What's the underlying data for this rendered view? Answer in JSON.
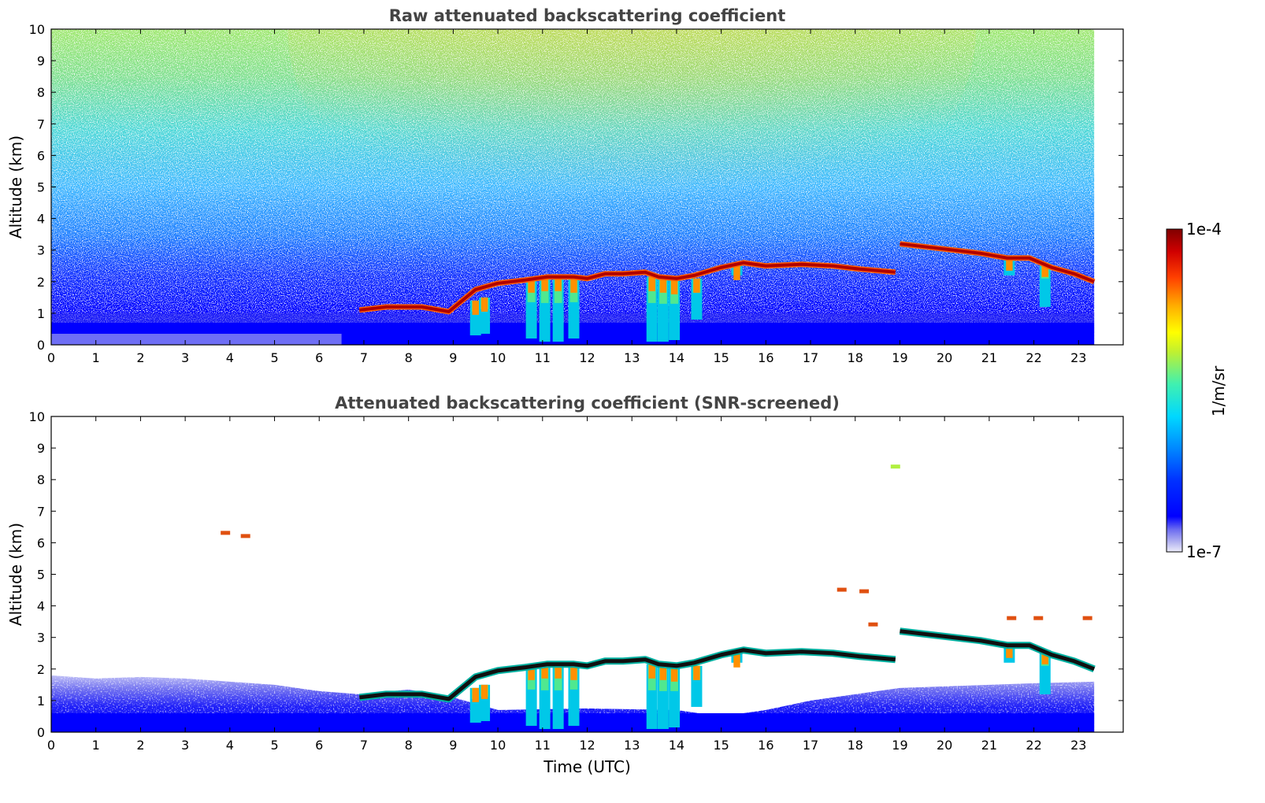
{
  "chart_data": [
    {
      "type": "heatmap",
      "title": "Raw attenuated backscattering coefficient",
      "xlabel": "",
      "ylabel": "Altitude (km)",
      "xlim": [
        0,
        24
      ],
      "ylim": [
        0,
        10
      ],
      "data_end_time": 23.35,
      "xticks": [
        "0",
        "1",
        "2",
        "3",
        "4",
        "5",
        "6",
        "7",
        "8",
        "9",
        "10",
        "11",
        "12",
        "13",
        "14",
        "15",
        "16",
        "17",
        "18",
        "19",
        "20",
        "21",
        "22",
        "23"
      ],
      "yticks": [
        "0",
        "1",
        "2",
        "3",
        "4",
        "5",
        "6",
        "7",
        "8",
        "9",
        "10"
      ],
      "screened": false,
      "cloud_layer": [
        [
          6.9,
          1.1
        ],
        [
          7.5,
          1.2
        ],
        [
          8.3,
          1.2
        ],
        [
          8.9,
          1.05
        ],
        [
          9.2,
          1.4
        ],
        [
          9.5,
          1.75
        ],
        [
          10.0,
          1.95
        ],
        [
          10.6,
          2.05
        ],
        [
          11.1,
          2.15
        ],
        [
          11.7,
          2.15
        ],
        [
          12.0,
          2.1
        ],
        [
          12.4,
          2.25
        ],
        [
          12.8,
          2.25
        ],
        [
          13.3,
          2.3
        ],
        [
          13.6,
          2.15
        ],
        [
          14.0,
          2.1
        ],
        [
          14.4,
          2.2
        ],
        [
          15.0,
          2.45
        ],
        [
          15.5,
          2.6
        ],
        [
          16.0,
          2.5
        ],
        [
          16.8,
          2.55
        ],
        [
          17.5,
          2.5
        ],
        [
          18.1,
          2.4
        ],
        [
          18.9,
          2.3
        ]
      ],
      "cloud_layer_2": [
        [
          19.0,
          3.2
        ],
        [
          19.6,
          3.1
        ],
        [
          20.2,
          3.0
        ],
        [
          20.8,
          2.9
        ],
        [
          21.4,
          2.75
        ],
        [
          21.9,
          2.75
        ],
        [
          22.4,
          2.45
        ],
        [
          22.9,
          2.25
        ],
        [
          23.35,
          2.0
        ]
      ],
      "fall_streaks": [
        [
          9.5,
          0.3,
          1.4
        ],
        [
          9.7,
          0.35,
          1.5
        ],
        [
          10.75,
          0.2,
          2.1
        ],
        [
          11.05,
          0.1,
          2.15
        ],
        [
          11.35,
          0.1,
          2.15
        ],
        [
          11.7,
          0.2,
          2.1
        ],
        [
          13.45,
          0.1,
          2.15
        ],
        [
          13.7,
          0.1,
          2.1
        ],
        [
          13.95,
          0.15,
          2.05
        ],
        [
          14.45,
          0.8,
          2.1
        ],
        [
          15.35,
          2.2,
          2.5
        ],
        [
          21.45,
          2.2,
          2.8
        ],
        [
          22.25,
          1.2,
          2.6
        ]
      ],
      "colorbar": {
        "label": "1/m/sr",
        "min_label": "1e-7",
        "max_label": "1e-4",
        "scale": "log"
      }
    },
    {
      "type": "heatmap",
      "title": "Attenuated backscattering coefficient (SNR-screened)",
      "xlabel": "Time (UTC)",
      "ylabel": "Altitude (km)",
      "xlim": [
        0,
        24
      ],
      "ylim": [
        0,
        10
      ],
      "data_end_time": 23.35,
      "xticks": [
        "0",
        "1",
        "2",
        "3",
        "4",
        "5",
        "6",
        "7",
        "8",
        "9",
        "10",
        "11",
        "12",
        "13",
        "14",
        "15",
        "16",
        "17",
        "18",
        "19",
        "20",
        "21",
        "22",
        "23"
      ],
      "yticks": [
        "0",
        "1",
        "2",
        "3",
        "4",
        "5",
        "6",
        "7",
        "8",
        "9",
        "10"
      ],
      "screened": true,
      "isolated_features": [
        [
          3.9,
          6.3
        ],
        [
          4.35,
          6.2
        ],
        [
          18.9,
          8.4
        ],
        [
          17.7,
          4.5
        ],
        [
          18.2,
          4.45
        ],
        [
          18.4,
          3.4
        ],
        [
          21.5,
          3.6
        ],
        [
          22.1,
          3.6
        ],
        [
          23.2,
          3.6
        ]
      ]
    }
  ],
  "colors": {
    "colormap": [
      "#e6e6f8",
      "#b4b4f0",
      "#6a6af0",
      "#0000ff",
      "#0040ff",
      "#0090ff",
      "#00d0ff",
      "#20e8c0",
      "#80f060",
      "#e0f020",
      "#ffc000",
      "#ff6000",
      "#e01000",
      "#8b0000"
    ]
  }
}
